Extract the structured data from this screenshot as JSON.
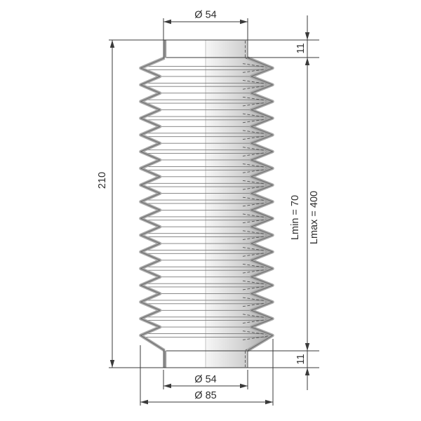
{
  "dimensions": {
    "top_diameter": "Ø 54",
    "top_collar_height": "11",
    "overall_length": "210",
    "min_length": "Lmin = 70",
    "max_length": "Lmax = 400",
    "bottom_collar_height": "11",
    "bottom_inner_diameter": "Ø 54",
    "bottom_outer_diameter": "Ø 85"
  },
  "drawing": {
    "convolutions": 17,
    "colors": {
      "background": "#ffffff",
      "dimension_line": "#3a3a3a",
      "text": "#2e2e2e",
      "profile_gray": "#a8a8a8",
      "profile_core": "#6e6e6e",
      "thin_line": "#787878",
      "hidden_line": "#555555",
      "centerline": "#b5b5b5",
      "shade_light": "#f6f6f6",
      "shade_mid": "#d2d2d2",
      "shade_dark": "#a4a4a4"
    }
  }
}
